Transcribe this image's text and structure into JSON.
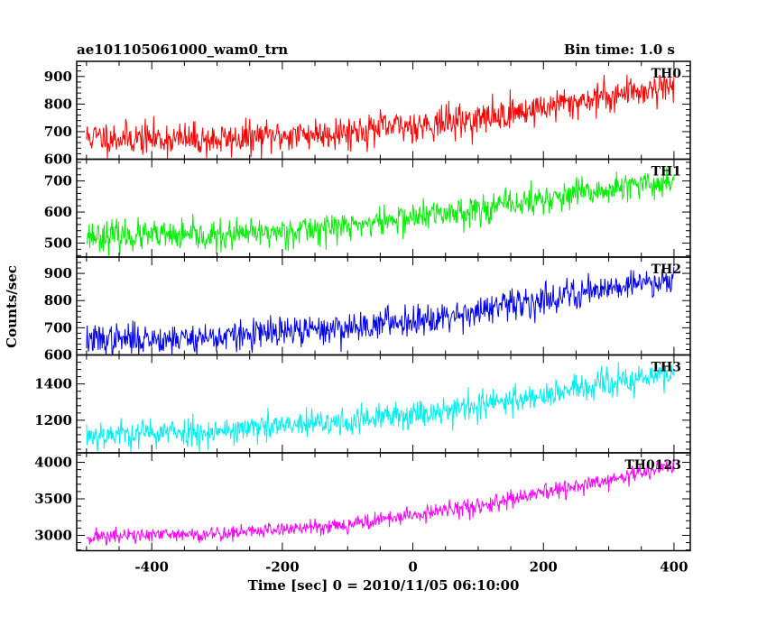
{
  "header": {
    "left_title": "ae101105061000_wam0_trn",
    "right_title": "Bin time: 1.0 s"
  },
  "chart_data": {
    "type": "line",
    "title": "ae101105061000_wam0_trn",
    "bin_time": "Bin time: 1.0 s",
    "xlabel": "Time [sec] 0 = 2010/11/05 06:10:00",
    "ylabel": "Counts/sec",
    "xlim": [
      -515,
      425
    ],
    "x_range": [
      -500,
      400
    ],
    "x_step": 1,
    "xticks": [
      -400,
      -200,
      0,
      200,
      400
    ],
    "grid": false,
    "panels": [
      {
        "name": "TH0",
        "color": "#ff0000",
        "ylim": [
          600,
          955
        ],
        "yticks": [
          600,
          700,
          800,
          900
        ],
        "trend": [
          [
            -500,
            680
          ],
          [
            -300,
            670
          ],
          [
            -100,
            700
          ],
          [
            100,
            745
          ],
          [
            300,
            830
          ],
          [
            400,
            870
          ]
        ],
        "noise_sd": 30,
        "seed": 11
      },
      {
        "name": "TH1",
        "color": "#00ee00",
        "ylim": [
          455,
          770
        ],
        "yticks": [
          500,
          600,
          700
        ],
        "trend": [
          [
            -500,
            525
          ],
          [
            -300,
            520
          ],
          [
            -100,
            555
          ],
          [
            100,
            610
          ],
          [
            300,
            670
          ],
          [
            400,
            700
          ]
        ],
        "noise_sd": 24,
        "seed": 23
      },
      {
        "name": "TH2",
        "color": "#0000ee",
        "ylim": [
          600,
          960
        ],
        "yticks": [
          600,
          700,
          800,
          900
        ],
        "trend": [
          [
            -500,
            655
          ],
          [
            -300,
            665
          ],
          [
            -100,
            700
          ],
          [
            100,
            760
          ],
          [
            300,
            850
          ],
          [
            400,
            880
          ]
        ],
        "noise_sd": 28,
        "seed": 37
      },
      {
        "name": "TH3",
        "color": "#00eeee",
        "ylim": [
          1020,
          1560
        ],
        "yticks": [
          1200,
          1400
        ],
        "trend": [
          [
            -500,
            1120
          ],
          [
            -300,
            1140
          ],
          [
            -100,
            1190
          ],
          [
            100,
            1280
          ],
          [
            300,
            1400
          ],
          [
            400,
            1460
          ]
        ],
        "noise_sd": 40,
        "seed": 53
      },
      {
        "name": "TH0123",
        "color": "#ff00ff",
        "ylim": [
          2790,
          4130
        ],
        "yticks": [
          3000,
          3500,
          4000
        ],
        "trend": [
          [
            -500,
            2980
          ],
          [
            -300,
            3020
          ],
          [
            -100,
            3150
          ],
          [
            100,
            3400
          ],
          [
            300,
            3750
          ],
          [
            400,
            3960
          ]
        ],
        "noise_sd": 55,
        "seed": 71
      }
    ]
  }
}
